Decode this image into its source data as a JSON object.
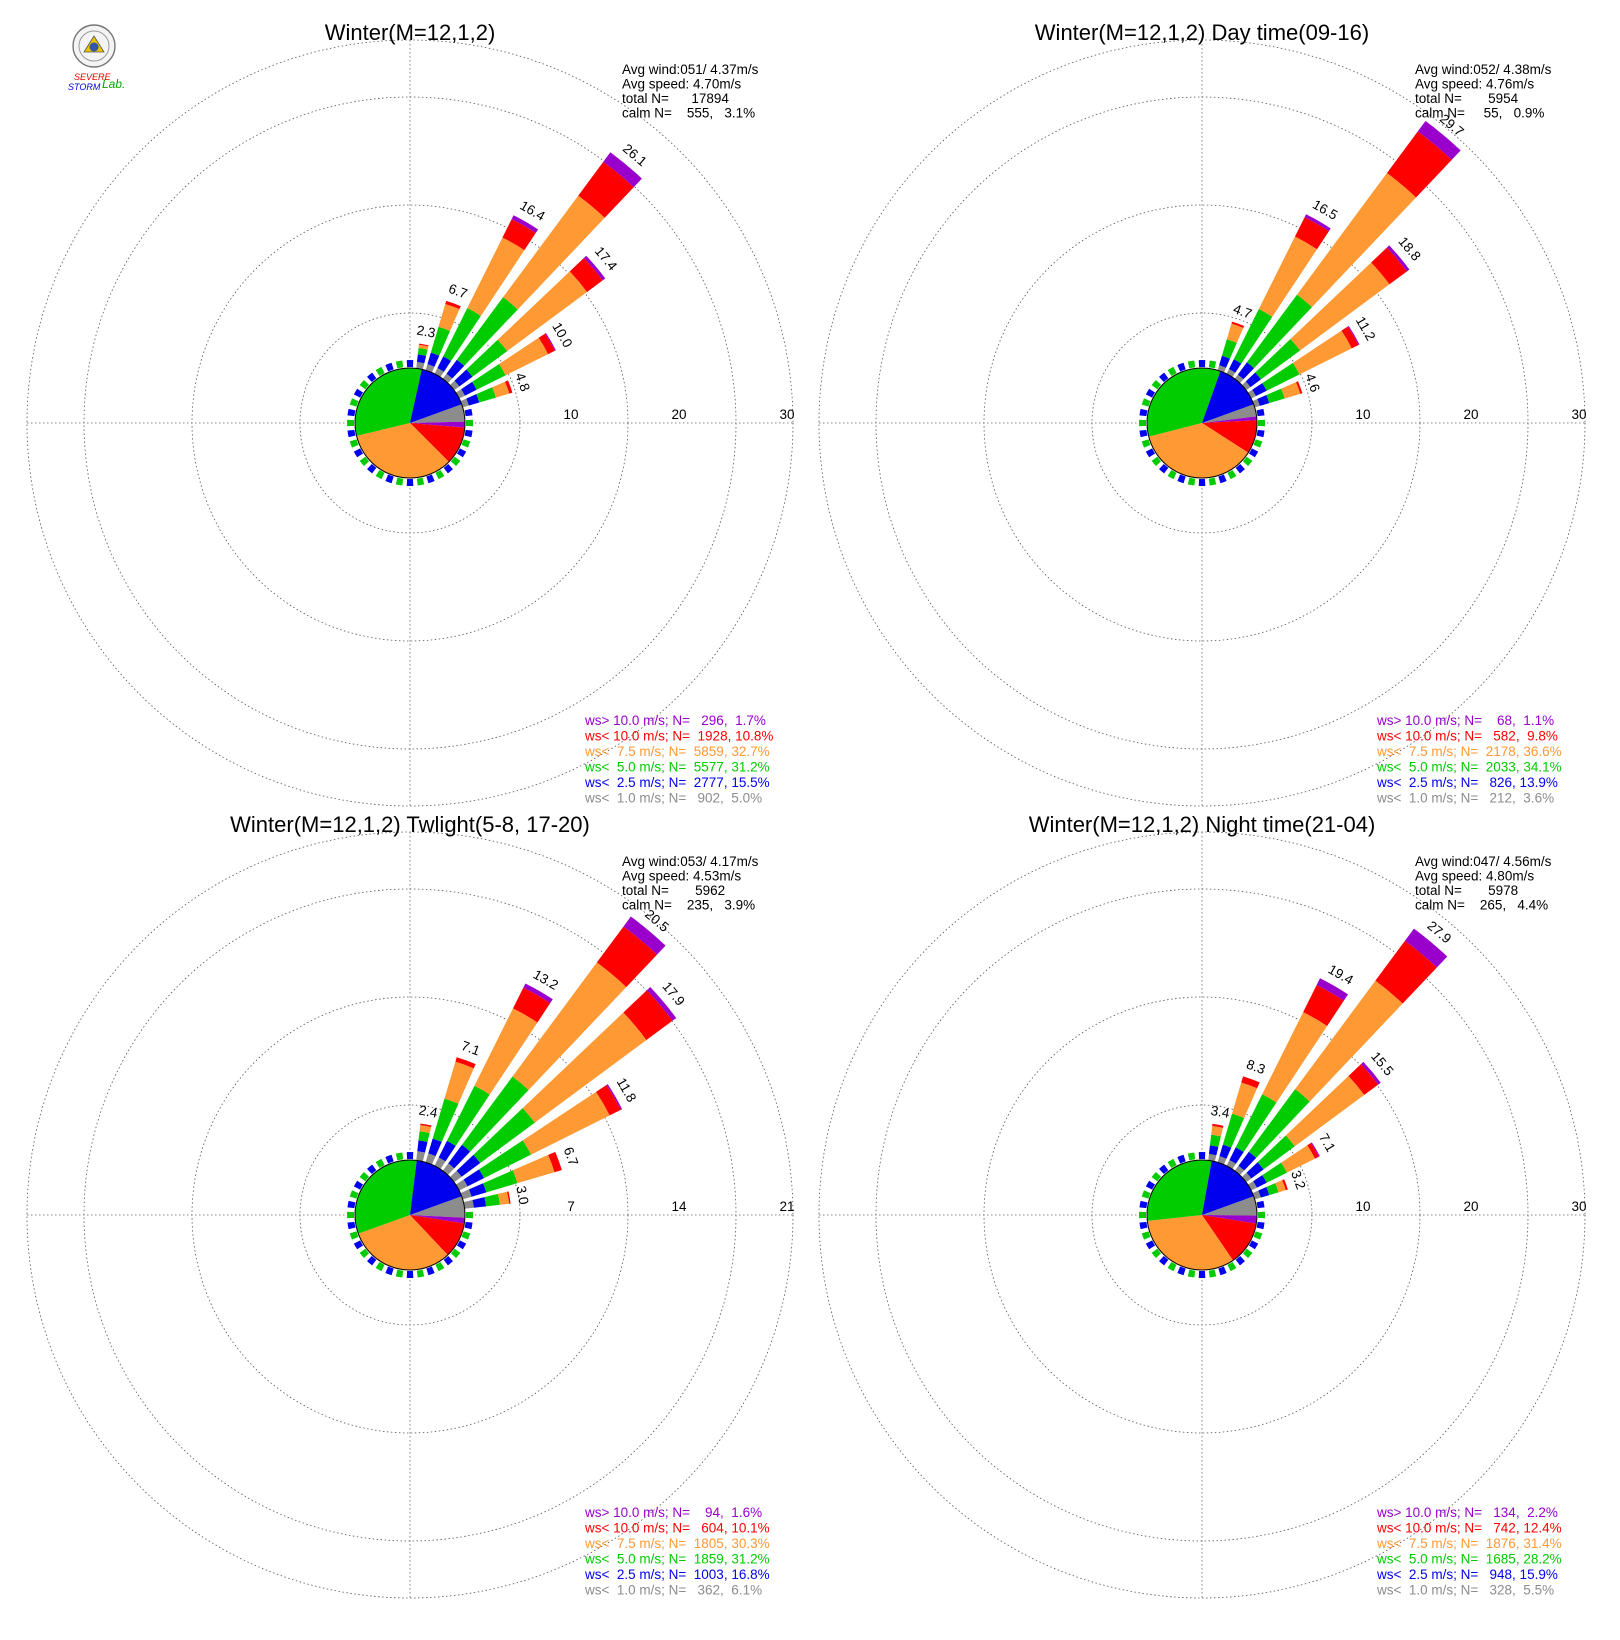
{
  "logo": {
    "lines": [
      "SEVERE",
      "STORM",
      "Lab."
    ]
  },
  "speed_classes": [
    {
      "key": "c1",
      "color": "#8c8c8c"
    },
    {
      "key": "c2",
      "color": "#0000ee"
    },
    {
      "key": "c3",
      "color": "#00cc00"
    },
    {
      "key": "c4",
      "color": "#ff9933"
    },
    {
      "key": "c5",
      "color": "#ff0000"
    },
    {
      "key": "c6",
      "color": "#9900cc"
    }
  ],
  "chart_data": [
    {
      "type": "wind-rose",
      "title": "Winter(M=12,1,2)",
      "stats": {
        "avg_wind": "Avg wind:051/ 4.37m/s",
        "avg_speed": "Avg speed: 4.70m/s",
        "total": "total N=      17894",
        "calm": "calm N=    555,   3.1%"
      },
      "rings": [
        "10",
        "20",
        "30"
      ],
      "rmax": 30,
      "spokes": [
        {
          "dir": 10,
          "total": 2.3,
          "label": "2.3",
          "comp": [
            0.6,
            0.7,
            0.6,
            0.3,
            0.1,
            0.0
          ]
        },
        {
          "dir": 20,
          "total": 6.7,
          "label": "6.7",
          "comp": [
            0.6,
            1.1,
            2.5,
            2.2,
            0.3,
            0.0
          ]
        },
        {
          "dir": 30,
          "total": 16.4,
          "label": "16.4",
          "comp": [
            0.6,
            1.2,
            5.0,
            7.3,
            1.9,
            0.4
          ]
        },
        {
          "dir": 40,
          "total": 26.1,
          "label": "26.1",
          "comp": [
            0.6,
            1.6,
            7.2,
            11.7,
            3.9,
            1.1
          ]
        },
        {
          "dir": 50,
          "total": 17.4,
          "label": "17.4",
          "comp": [
            0.6,
            1.5,
            4.0,
            9.2,
            1.8,
            0.3
          ]
        },
        {
          "dir": 60,
          "total": 10.0,
          "label": "10.0",
          "comp": [
            0.6,
            1.2,
            3.0,
            4.4,
            0.7,
            0.1
          ]
        },
        {
          "dir": 70,
          "total": 4.8,
          "label": "4.8",
          "comp": [
            0.6,
            1.0,
            1.6,
            1.3,
            0.3,
            0.0
          ]
        }
      ],
      "legend": [
        {
          "text": "ws> 10.0 m/s; N=   296,  1.7%",
          "class": 5
        },
        {
          "text": "ws< 10.0 m/s; N=  1928, 10.8%",
          "class": 4
        },
        {
          "text": "ws<  7.5 m/s; N=  5859, 32.7%",
          "class": 3
        },
        {
          "text": "ws<  5.0 m/s; N=  5577, 31.2%",
          "class": 2
        },
        {
          "text": "ws<  2.5 m/s; N=  2777, 15.5%",
          "class": 1
        },
        {
          "text": "ws<  1.0 m/s; N=   902,  5.0%",
          "class": 0
        }
      ]
    },
    {
      "type": "wind-rose",
      "title": "Winter(M=12,1,2) Day time(09-16)",
      "stats": {
        "avg_wind": "Avg wind:052/ 4.38m/s",
        "avg_speed": "Avg speed: 4.76m/s",
        "total": "total N=       5954",
        "calm": "calm N=     55,   0.9%"
      },
      "rings": [
        "10",
        "20",
        "30"
      ],
      "rmax": 30,
      "spokes": [
        {
          "dir": 20,
          "total": 4.7,
          "label": "4.7",
          "comp": [
            0.5,
            0.9,
            1.6,
            1.5,
            0.2,
            0.0
          ]
        },
        {
          "dir": 30,
          "total": 16.5,
          "label": "16.5",
          "comp": [
            0.5,
            1.0,
            5.2,
            7.5,
            2.0,
            0.3
          ]
        },
        {
          "dir": 40,
          "total": 29.7,
          "label": "29.7",
          "comp": [
            0.5,
            1.4,
            7.8,
            14.0,
            4.8,
            1.2
          ]
        },
        {
          "dir": 50,
          "total": 18.8,
          "label": "18.8",
          "comp": [
            0.5,
            1.2,
            4.5,
            10.3,
            2.0,
            0.3
          ]
        },
        {
          "dir": 60,
          "total": 11.2,
          "label": "11.2",
          "comp": [
            0.5,
            1.1,
            3.4,
            5.4,
            0.7,
            0.1
          ]
        },
        {
          "dir": 70,
          "total": 4.6,
          "label": "4.6",
          "comp": [
            0.5,
            0.9,
            1.5,
            1.5,
            0.2,
            0.0
          ]
        }
      ],
      "legend": [
        {
          "text": "ws> 10.0 m/s; N=    68,  1.1%",
          "class": 5
        },
        {
          "text": "ws< 10.0 m/s; N=   582,  9.8%",
          "class": 4
        },
        {
          "text": "ws<  7.5 m/s; N=  2178, 36.6%",
          "class": 3
        },
        {
          "text": "ws<  5.0 m/s; N=  2033, 34.1%",
          "class": 2
        },
        {
          "text": "ws<  2.5 m/s; N=   826, 13.9%",
          "class": 1
        },
        {
          "text": "ws<  1.0 m/s; N=   212,  3.6%",
          "class": 0
        }
      ]
    },
    {
      "type": "wind-rose",
      "title": "Winter(M=12,1,2) Twlight(5-8, 17-20)",
      "stats": {
        "avg_wind": "Avg wind:053/ 4.17m/s",
        "avg_speed": "Avg speed: 4.53m/s",
        "total": "total N=       5962",
        "calm": "calm N=    235,   3.9%"
      },
      "rings": [
        "7",
        "14",
        "21"
      ],
      "rmax": 21,
      "spokes": [
        {
          "dir": 10,
          "total": 2.4,
          "label": "2.4",
          "comp": [
            0.6,
            0.7,
            0.6,
            0.4,
            0.1,
            0.0
          ]
        },
        {
          "dir": 20,
          "total": 7.1,
          "label": "7.1",
          "comp": [
            0.6,
            1.0,
            2.7,
            2.5,
            0.3,
            0.0
          ]
        },
        {
          "dir": 30,
          "total": 13.2,
          "label": "13.2",
          "comp": [
            0.6,
            1.2,
            4.0,
            5.6,
            1.5,
            0.3
          ]
        },
        {
          "dir": 40,
          "total": 20.5,
          "label": "20.5",
          "comp": [
            0.6,
            1.5,
            5.5,
            9.2,
            2.9,
            0.8
          ]
        },
        {
          "dir": 50,
          "total": 17.9,
          "label": "17.9",
          "comp": [
            0.6,
            1.5,
            4.4,
            9.0,
            2.1,
            0.3
          ]
        },
        {
          "dir": 60,
          "total": 11.8,
          "label": "11.8",
          "comp": [
            0.6,
            1.2,
            3.4,
            5.7,
            0.8,
            0.1
          ]
        },
        {
          "dir": 70,
          "total": 6.7,
          "label": "6.7",
          "comp": [
            0.6,
            1.0,
            2.1,
            2.5,
            0.5,
            0.0
          ]
        },
        {
          "dir": 80,
          "total": 3.0,
          "label": "3.0",
          "comp": [
            0.6,
            0.8,
            0.9,
            0.6,
            0.1,
            0.0
          ]
        }
      ],
      "legend": [
        {
          "text": "ws> 10.0 m/s; N=    94,  1.6%",
          "class": 5
        },
        {
          "text": "ws< 10.0 m/s; N=   604, 10.1%",
          "class": 4
        },
        {
          "text": "ws<  7.5 m/s; N=  1805, 30.3%",
          "class": 3
        },
        {
          "text": "ws<  5.0 m/s; N=  1859, 31.2%",
          "class": 2
        },
        {
          "text": "ws<  2.5 m/s; N=  1003, 16.8%",
          "class": 1
        },
        {
          "text": "ws<  1.0 m/s; N=   362,  6.1%",
          "class": 0
        }
      ]
    },
    {
      "type": "wind-rose",
      "title": "Winter(M=12,1,2) Night time(21-04)",
      "stats": {
        "avg_wind": "Avg wind:047/ 4.56m/s",
        "avg_speed": "Avg speed: 4.80m/s",
        "total": "total N=       5978",
        "calm": "calm N=    265,   4.4%"
      },
      "rings": [
        "10",
        "20",
        "30"
      ],
      "rmax": 30,
      "spokes": [
        {
          "dir": 10,
          "total": 3.4,
          "label": "3.4",
          "comp": [
            0.6,
            0.8,
            1.0,
            0.8,
            0.2,
            0.0
          ]
        },
        {
          "dir": 20,
          "total": 8.3,
          "label": "8.3",
          "comp": [
            0.6,
            1.1,
            3.0,
            3.0,
            0.6,
            0.0
          ]
        },
        {
          "dir": 30,
          "total": 19.4,
          "label": "19.4",
          "comp": [
            0.6,
            1.3,
            5.5,
            8.5,
            2.8,
            0.7
          ]
        },
        {
          "dir": 40,
          "total": 27.9,
          "label": "27.9",
          "comp": [
            0.6,
            1.6,
            7.2,
            12.5,
            4.6,
            1.4
          ]
        },
        {
          "dir": 50,
          "total": 15.5,
          "label": "15.5",
          "comp": [
            0.6,
            1.4,
            3.6,
            8.0,
            1.6,
            0.3
          ]
        },
        {
          "dir": 60,
          "total": 7.1,
          "label": "7.1",
          "comp": [
            0.6,
            1.0,
            2.1,
            2.9,
            0.4,
            0.1
          ]
        },
        {
          "dir": 70,
          "total": 3.2,
          "label": "3.2",
          "comp": [
            0.6,
            0.8,
            0.9,
            0.7,
            0.2,
            0.0
          ]
        }
      ],
      "legend": [
        {
          "text": "ws> 10.0 m/s; N=   134,  2.2%",
          "class": 5
        },
        {
          "text": "ws< 10.0 m/s; N=   742, 12.4%",
          "class": 4
        },
        {
          "text": "ws<  7.5 m/s; N=  1876, 31.4%",
          "class": 3
        },
        {
          "text": "ws<  5.0 m/s; N=  1685, 28.2%",
          "class": 2
        },
        {
          "text": "ws<  2.5 m/s; N=   948, 15.9%",
          "class": 1
        },
        {
          "text": "ws<  1.0 m/s; N=   328,  5.5%",
          "class": 0
        }
      ]
    }
  ]
}
